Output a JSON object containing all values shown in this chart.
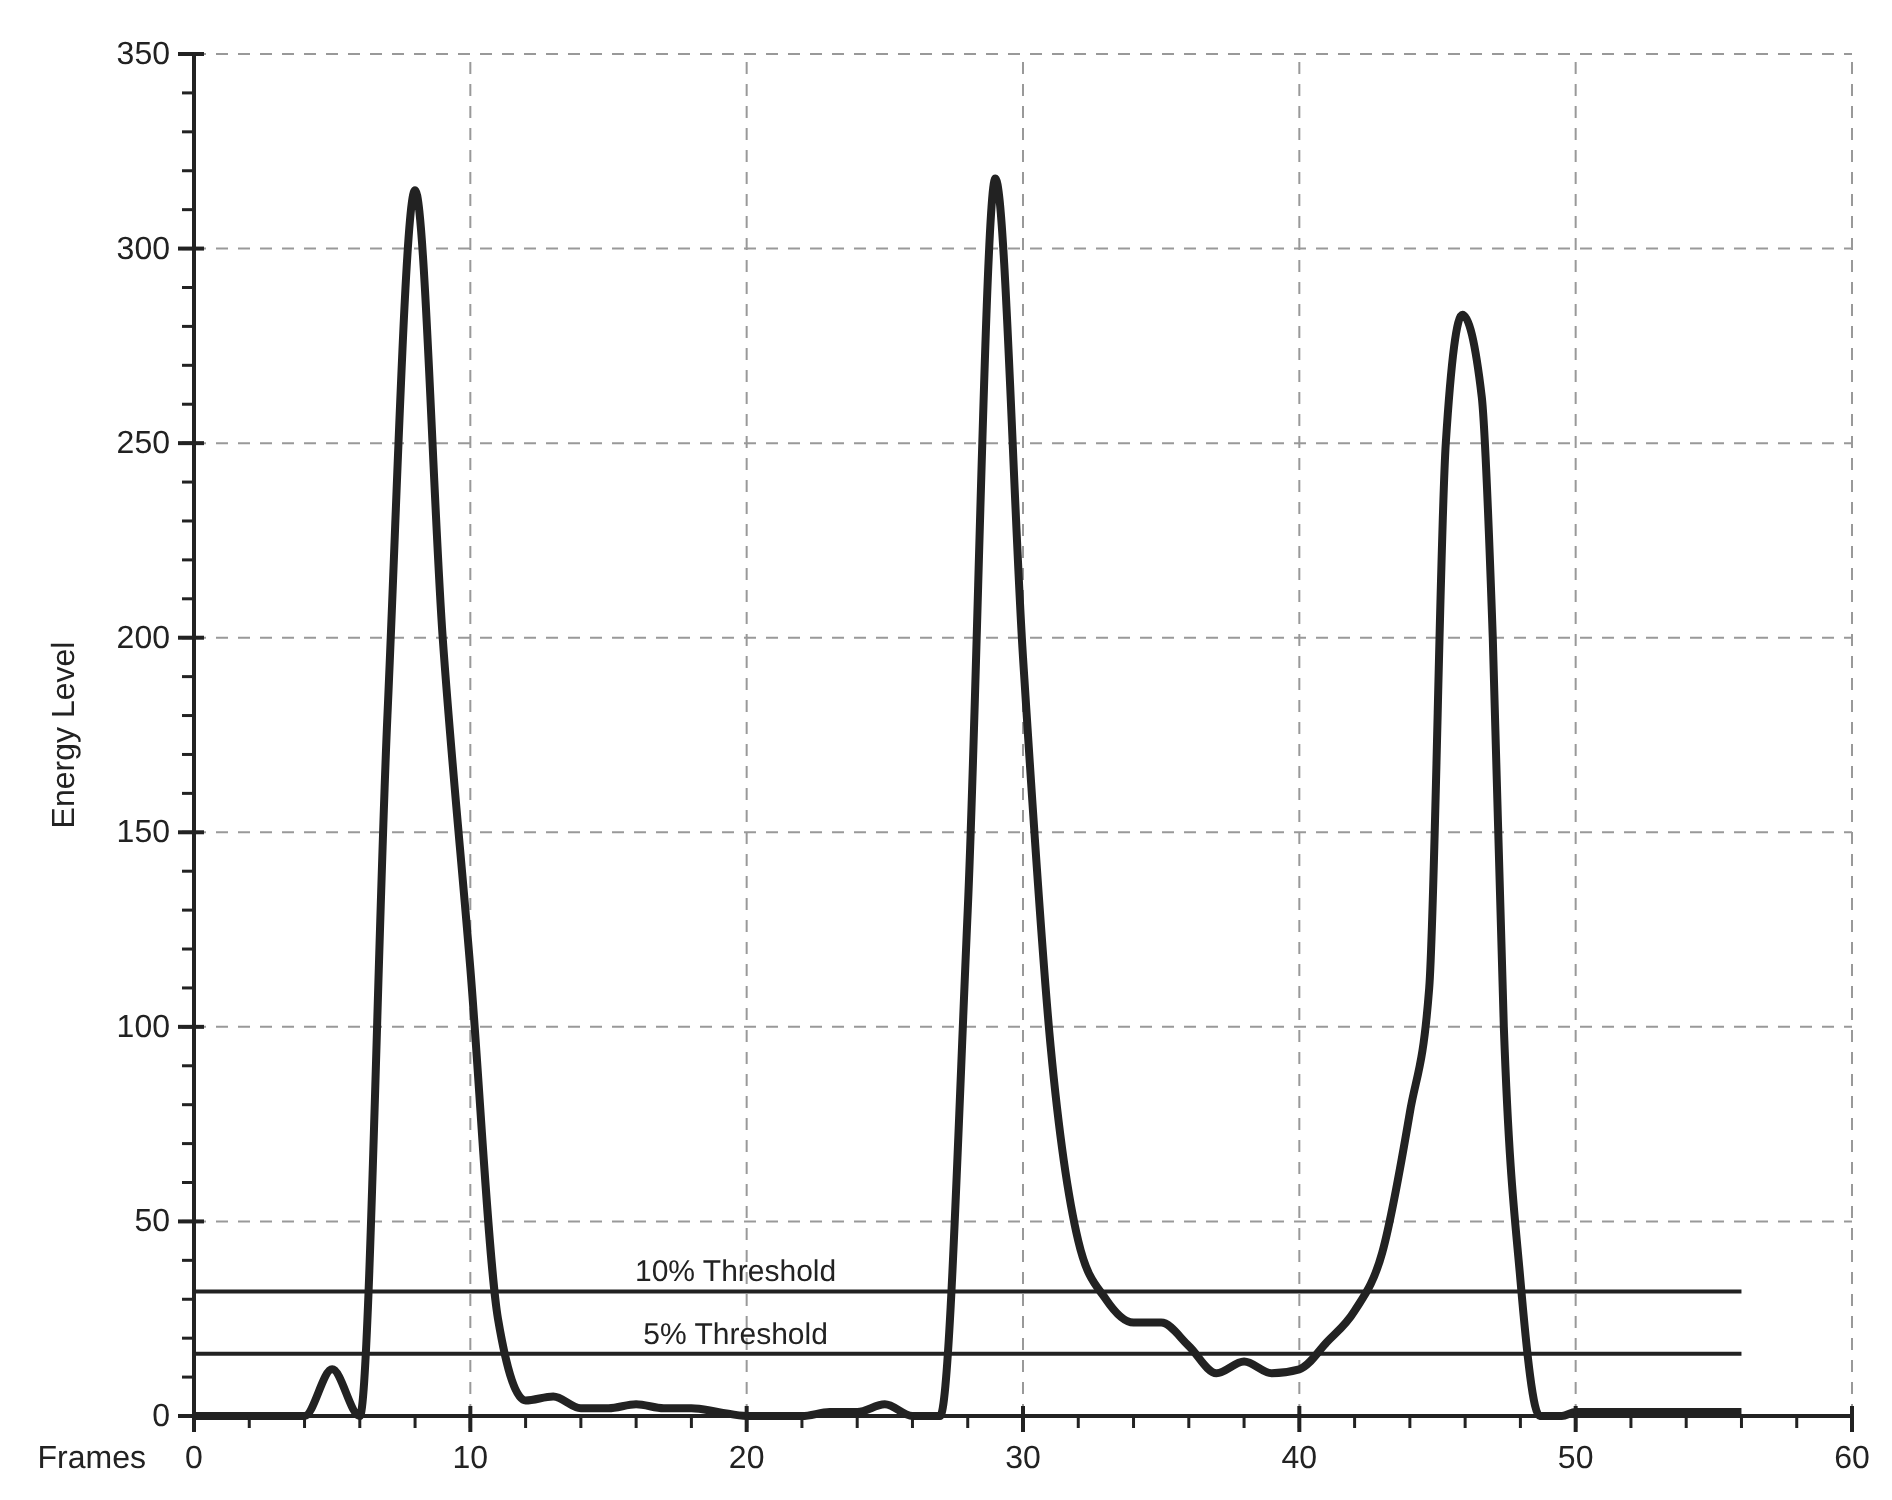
{
  "chart_data": {
    "type": "line",
    "xlabel": "Frames",
    "ylabel": "Energy Level",
    "xlim": [
      0,
      60
    ],
    "xticks": [
      0,
      10,
      20,
      30,
      40,
      50,
      60
    ],
    "ylim": [
      0,
      350
    ],
    "yticks": [
      0,
      50,
      100,
      150,
      200,
      250,
      300,
      350
    ],
    "grid": true,
    "line_style": "solid",
    "marker": "none",
    "series": [
      {
        "color": "#222222",
        "x": [
          0,
          1,
          2,
          3,
          4,
          5,
          6,
          7,
          8,
          9,
          10,
          11,
          12,
          13,
          14,
          15,
          16,
          17,
          18,
          19,
          20,
          21,
          22,
          23,
          24,
          25,
          26,
          27,
          28,
          29,
          30,
          31,
          32,
          33,
          34,
          35,
          36,
          37,
          38,
          39,
          40,
          41,
          42,
          43,
          44,
          44.7,
          45.3,
          45.9,
          46.6,
          47,
          47.4,
          48,
          48.7,
          49.5,
          50,
          51,
          52,
          53,
          54,
          55,
          56
        ],
        "values": [
          0,
          0,
          0,
          0,
          0,
          12,
          0,
          180,
          315,
          200,
          115,
          25,
          4,
          5,
          2,
          2,
          3,
          2,
          2,
          1,
          0,
          0,
          0,
          1,
          1,
          3,
          0,
          0,
          130,
          318,
          195,
          95,
          45,
          30,
          24,
          24,
          18,
          11,
          14,
          11,
          12,
          19,
          27,
          42,
          78,
          110,
          250,
          283,
          262,
          200,
          100,
          35,
          0,
          0,
          1,
          1,
          1,
          1,
          1,
          1,
          1
        ]
      }
    ],
    "ref_lines": [
      {
        "axis": "y",
        "value": 32,
        "label": "10% Threshold",
        "color": "#222222"
      },
      {
        "axis": "y",
        "value": 16,
        "label": "5% Threshold",
        "color": "#222222"
      }
    ]
  }
}
